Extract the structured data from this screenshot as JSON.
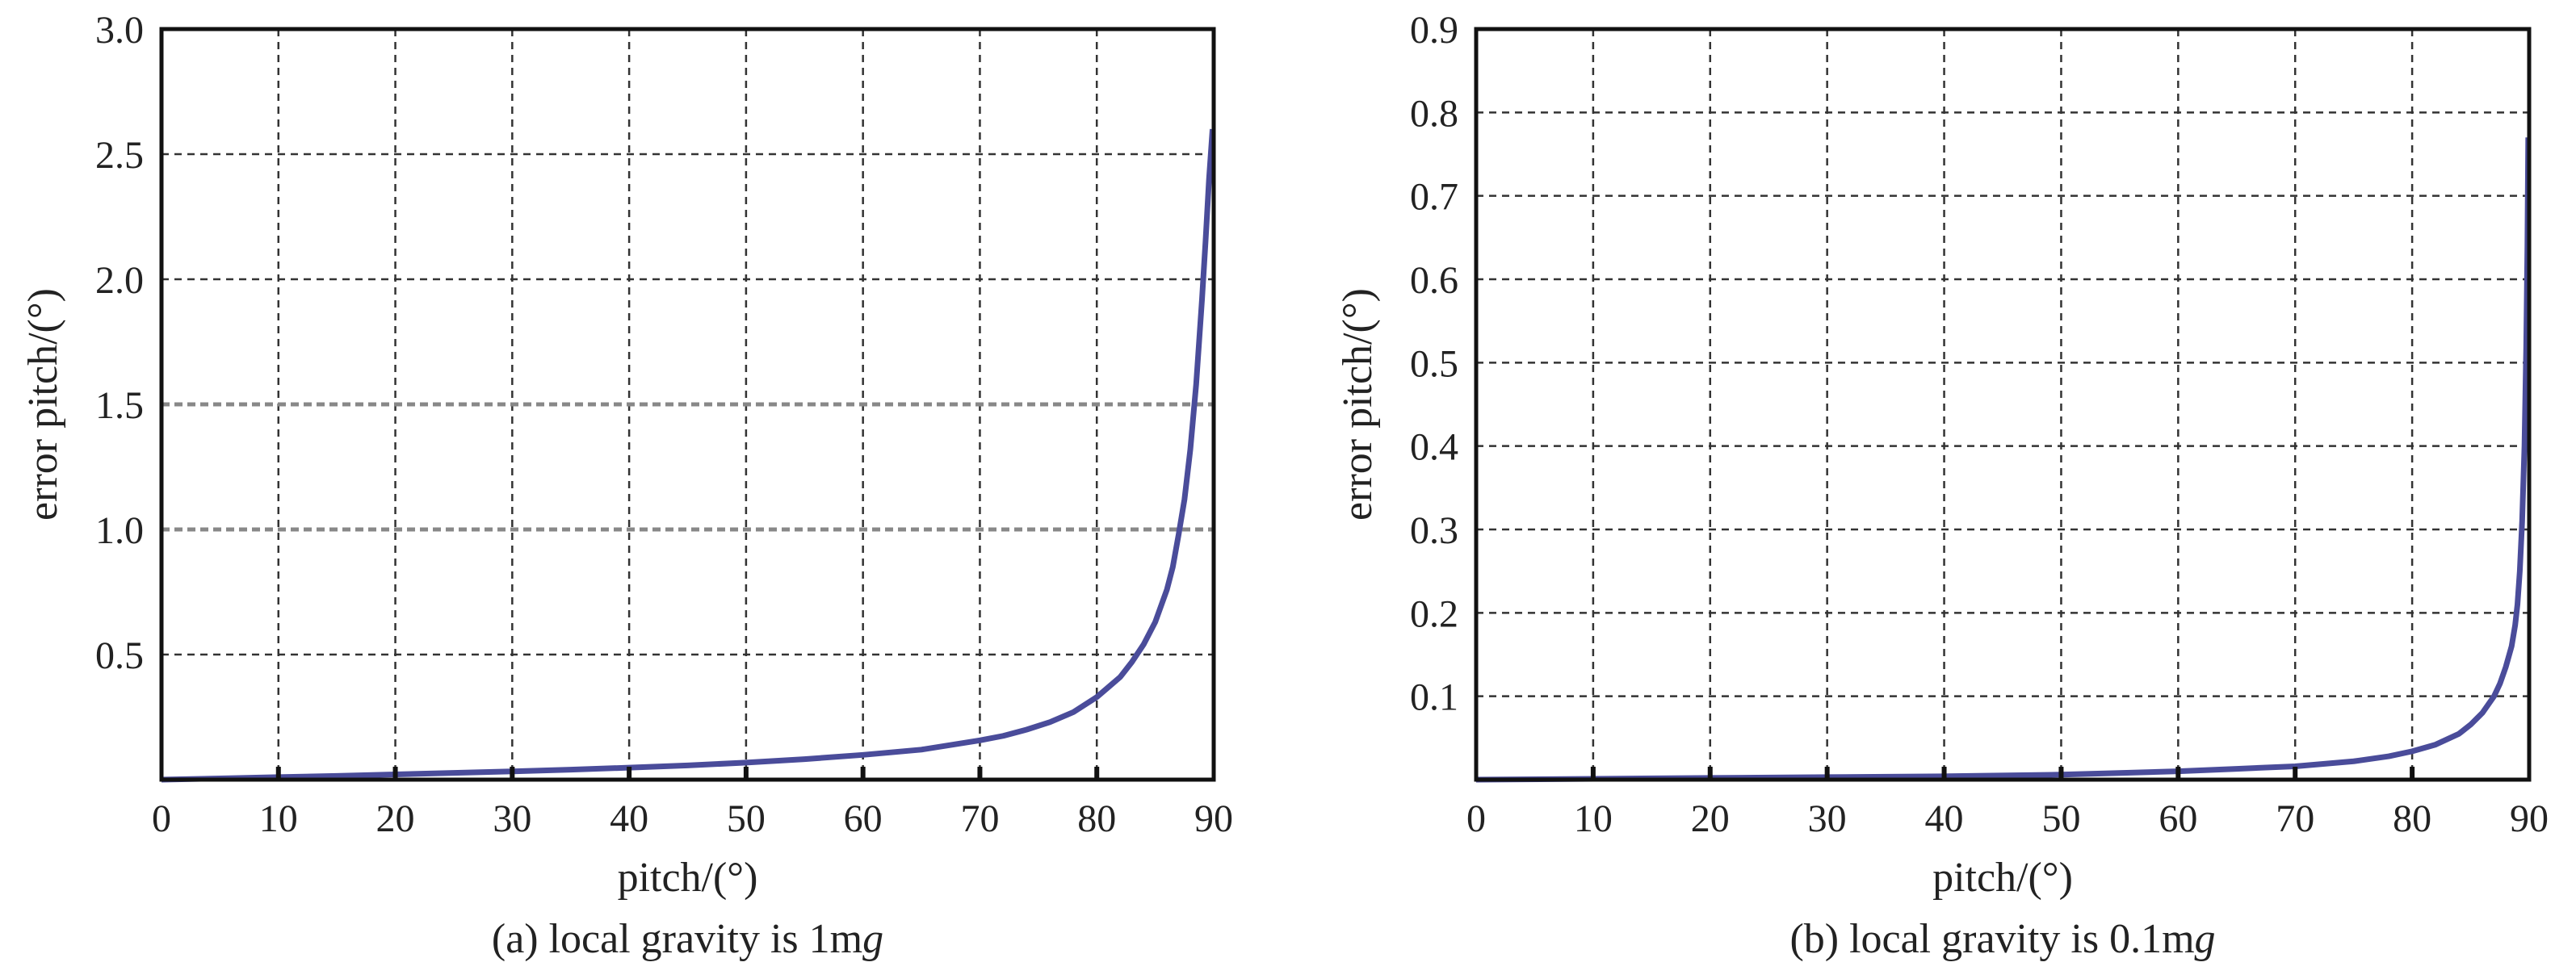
{
  "chart_data": [
    {
      "type": "line",
      "caption_prefix": "(a) local gravity is 1m",
      "caption_italic": "g",
      "xlabel": "pitch/(°)",
      "ylabel": "error pitch/(°)",
      "xlim": [
        0,
        90
      ],
      "ylim": [
        0,
        3.0
      ],
      "x_ticks": [
        "0",
        "10",
        "20",
        "30",
        "40",
        "50",
        "60",
        "70",
        "80",
        "90"
      ],
      "y_ticks": [
        "0.5",
        "1.0",
        "1.5",
        "2.0",
        "2.5",
        "3.0"
      ],
      "y_tick_values": [
        0.5,
        1.0,
        1.5,
        2.0,
        2.5,
        3.0
      ],
      "grid": true,
      "series": [
        {
          "color": "#4a4c9a",
          "x": [
            0,
            5,
            10,
            15,
            20,
            25,
            30,
            35,
            40,
            45,
            50,
            55,
            60,
            65,
            70,
            72,
            74,
            76,
            78,
            80,
            81,
            82,
            83,
            84,
            85,
            86,
            86.5,
            87,
            87.5,
            88,
            88.5,
            89,
            89.3,
            89.6,
            89.9
          ],
          "y": [
            0.0,
            0.005,
            0.01,
            0.015,
            0.021,
            0.027,
            0.033,
            0.04,
            0.048,
            0.057,
            0.068,
            0.082,
            0.099,
            0.12,
            0.157,
            0.175,
            0.2,
            0.23,
            0.27,
            0.33,
            0.37,
            0.41,
            0.47,
            0.54,
            0.63,
            0.76,
            0.85,
            0.98,
            1.12,
            1.32,
            1.58,
            1.92,
            2.15,
            2.4,
            2.6
          ]
        }
      ]
    },
    {
      "type": "line",
      "caption_prefix": "(b) local gravity is 0.1m",
      "caption_italic": "g",
      "xlabel": "pitch/(°)",
      "ylabel": "error pitch/(°)",
      "xlim": [
        0,
        90
      ],
      "ylim": [
        0,
        0.9
      ],
      "x_ticks": [
        "0",
        "10",
        "20",
        "30",
        "40",
        "50",
        "60",
        "70",
        "80",
        "90"
      ],
      "y_ticks": [
        "0.1",
        "0.2",
        "0.3",
        "0.4",
        "0.5",
        "0.6",
        "0.7",
        "0.8",
        "0.9"
      ],
      "y_tick_values": [
        0.1,
        0.2,
        0.3,
        0.4,
        0.5,
        0.6,
        0.7,
        0.8,
        0.9
      ],
      "grid": true,
      "series": [
        {
          "color": "#4a4c9a",
          "x": [
            0,
            10,
            20,
            30,
            40,
            50,
            55,
            60,
            65,
            70,
            75,
            78,
            80,
            82,
            84,
            85,
            86,
            87,
            87.5,
            88,
            88.5,
            88.8,
            89,
            89.2,
            89.4,
            89.6,
            89.75,
            89.85,
            89.92
          ],
          "y": [
            0.0,
            0.001,
            0.002,
            0.003,
            0.004,
            0.006,
            0.008,
            0.01,
            0.013,
            0.016,
            0.022,
            0.028,
            0.034,
            0.042,
            0.055,
            0.066,
            0.08,
            0.1,
            0.115,
            0.135,
            0.16,
            0.185,
            0.21,
            0.25,
            0.31,
            0.4,
            0.52,
            0.64,
            0.77
          ]
        }
      ]
    }
  ]
}
